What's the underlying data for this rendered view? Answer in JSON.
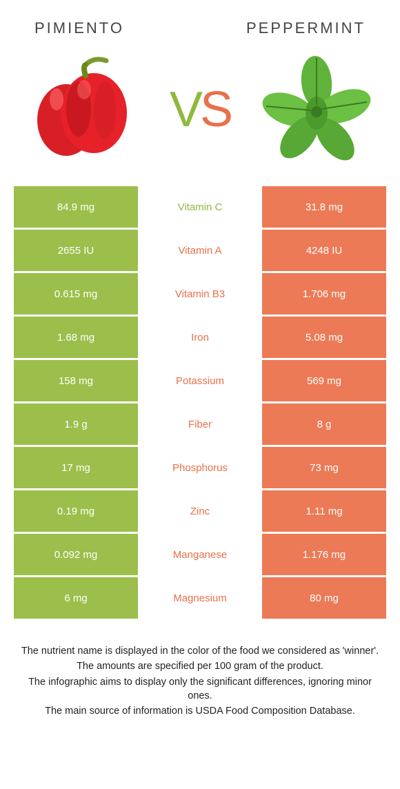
{
  "colors": {
    "left": "#9bbf4a",
    "right": "#ec7a56",
    "left_text": "#8fb93e",
    "right_text": "#e9704a"
  },
  "header": {
    "left": "PIMIENTO",
    "right": "PEPPERMINT"
  },
  "vs": {
    "v": "V",
    "s": "S"
  },
  "rows": [
    {
      "left": "84.9 mg",
      "label": "Vitamin C",
      "right": "31.8 mg",
      "winner": "left"
    },
    {
      "left": "2655 IU",
      "label": "Vitamin A",
      "right": "4248 IU",
      "winner": "right"
    },
    {
      "left": "0.615 mg",
      "label": "Vitamin B3",
      "right": "1.706 mg",
      "winner": "right"
    },
    {
      "left": "1.68 mg",
      "label": "Iron",
      "right": "5.08 mg",
      "winner": "right"
    },
    {
      "left": "158 mg",
      "label": "Potassium",
      "right": "569 mg",
      "winner": "right"
    },
    {
      "left": "1.9 g",
      "label": "Fiber",
      "right": "8 g",
      "winner": "right"
    },
    {
      "left": "17 mg",
      "label": "Phosphorus",
      "right": "73 mg",
      "winner": "right"
    },
    {
      "left": "0.19 mg",
      "label": "Zinc",
      "right": "1.11 mg",
      "winner": "right"
    },
    {
      "left": "0.092 mg",
      "label": "Manganese",
      "right": "1.176 mg",
      "winner": "right"
    },
    {
      "left": "6 mg",
      "label": "Magnesium",
      "right": "80 mg",
      "winner": "right"
    }
  ],
  "footer": {
    "l1": "The nutrient name is displayed in the color of the food we considered as 'winner'.",
    "l2": "The amounts are specified per 100 gram of the product.",
    "l3": "The infographic aims to display only the significant differences, ignoring minor ones.",
    "l4": "The main source of information is USDA Food Composition Database."
  }
}
